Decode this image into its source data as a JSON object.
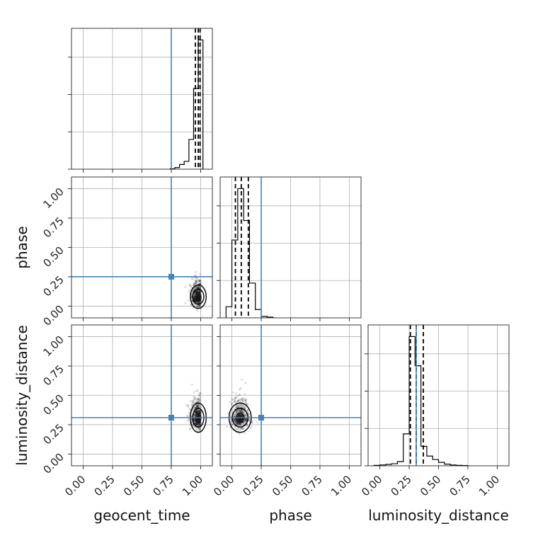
{
  "chart_data": {
    "type": "corner",
    "parameters": [
      "geocent_time",
      "phase",
      "luminosity_distance"
    ],
    "tick_labels": [
      "0.00",
      "0.25",
      "0.50",
      "0.75",
      "1.00"
    ],
    "axis_range": [
      -0.1,
      1.1
    ],
    "grid": true,
    "truths": {
      "geocent_time": 0.75,
      "phase": 0.25,
      "luminosity_distance": 0.31
    },
    "truth_color": "#4682b4",
    "quantiles": {
      "geocent_time": [
        0.955,
        0.98,
        0.995
      ],
      "phase": [
        0.03,
        0.08,
        0.14
      ],
      "luminosity_distance": [
        0.26,
        0.31,
        0.37
      ]
    },
    "histograms": {
      "geocent_time": {
        "bin_edges": [
          0.74,
          0.78,
          0.82,
          0.86,
          0.9,
          0.94,
          0.98,
          1.02
        ],
        "counts": [
          0.5,
          2,
          6,
          10,
          38,
          103,
          165
        ]
      },
      "phase": {
        "bin_edges": [
          -0.05,
          0.0,
          0.05,
          0.1,
          0.15,
          0.2,
          0.25,
          0.3,
          0.35
        ],
        "counts": [
          8,
          56,
          93,
          70,
          25,
          6,
          1,
          0.5
        ]
      },
      "luminosity_distance": {
        "bin_edges": [
          -0.05,
          0.0,
          0.05,
          0.1,
          0.15,
          0.2,
          0.25,
          0.3,
          0.35,
          0.4,
          0.45,
          0.5,
          0.55,
          0.6,
          0.65,
          0.7,
          0.75
        ],
        "counts": [
          0.3,
          0.6,
          1,
          1.5,
          3,
          23,
          93,
          72,
          14,
          7,
          4.5,
          2.5,
          1.2,
          0.6,
          0.3,
          0.2
        ]
      }
    },
    "scatter_panels": [
      {
        "x": "geocent_time",
        "y": "phase",
        "center": [
          0.98,
          0.08
        ],
        "spread": [
          0.05,
          0.08
        ]
      },
      {
        "x": "geocent_time",
        "y": "luminosity_distance",
        "center": [
          0.98,
          0.31
        ],
        "spread": [
          0.05,
          0.1
        ]
      },
      {
        "x": "phase",
        "y": "luminosity_distance",
        "center": [
          0.07,
          0.31
        ],
        "spread": [
          0.07,
          0.1
        ]
      }
    ]
  }
}
